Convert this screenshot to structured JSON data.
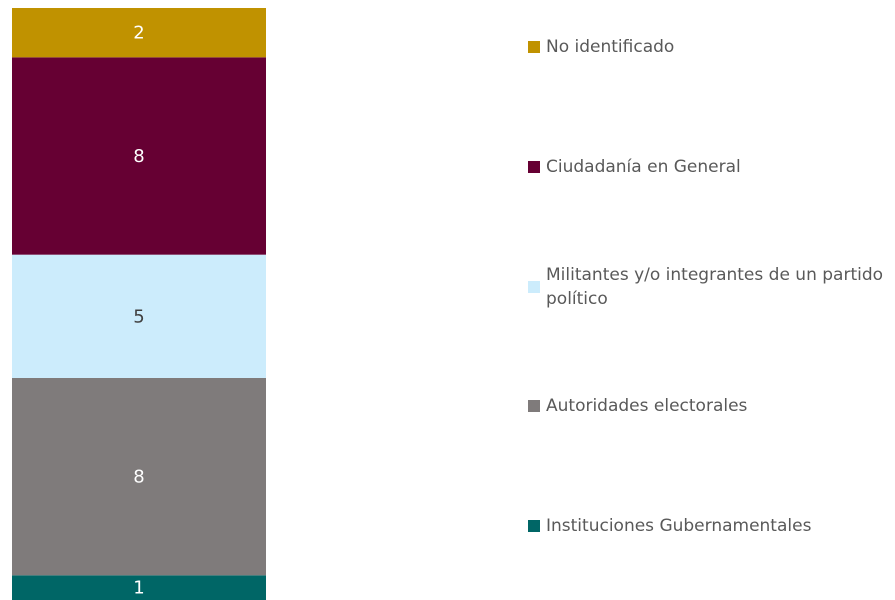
{
  "chart_data": {
    "type": "bar",
    "stacked": true,
    "series": [
      {
        "name": "Instituciones Gubernamentales",
        "color": "#006666",
        "values": [
          1
        ]
      },
      {
        "name": "Autoridades electorales",
        "color": "#7f7b7b",
        "values": [
          8
        ]
      },
      {
        "name": "Militantes y/o integrantes de un partido político",
        "color": "#ccecfc",
        "values": [
          5
        ]
      },
      {
        "name": "Ciudadanía en General",
        "color": "#660033",
        "values": [
          8
        ]
      },
      {
        "name": "No identificado",
        "color": "#c09200",
        "values": [
          2
        ]
      }
    ],
    "legend": "right"
  }
}
